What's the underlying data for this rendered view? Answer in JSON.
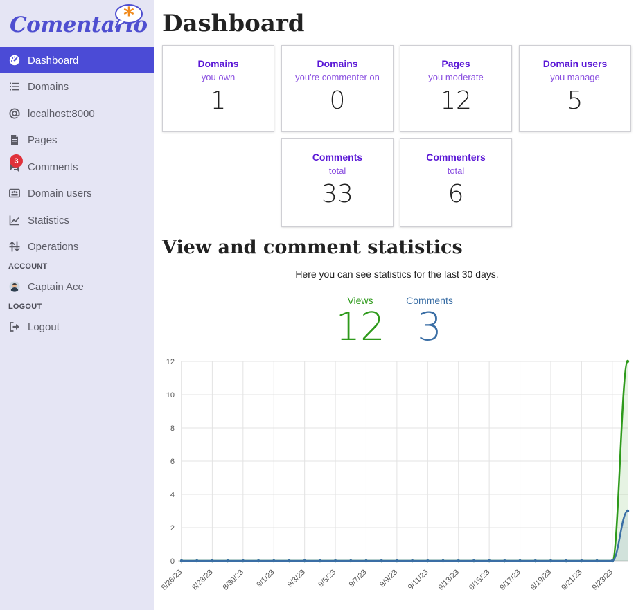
{
  "app": {
    "logo_text": "Comentario",
    "logo_mark": "*"
  },
  "sidebar": {
    "items": [
      {
        "label": "Dashboard",
        "icon": "dashboard-icon",
        "active": true
      },
      {
        "label": "Domains",
        "icon": "list-icon"
      },
      {
        "label": "localhost:8000",
        "icon": "at-icon"
      },
      {
        "label": "Pages",
        "icon": "file-icon"
      },
      {
        "label": "Comments",
        "icon": "comments-icon",
        "badge": "3"
      },
      {
        "label": "Domain users",
        "icon": "users-card-icon"
      },
      {
        "label": "Statistics",
        "icon": "chart-line-icon"
      },
      {
        "label": "Operations",
        "icon": "operations-icon"
      }
    ],
    "account_heading": "ACCOUNT",
    "account_user": "Captain Ace",
    "logout_heading": "LOGOUT",
    "logout_label": "Logout"
  },
  "main": {
    "title": "Dashboard",
    "cards": [
      {
        "title": "Domains",
        "subtitle": "you own",
        "value": "1"
      },
      {
        "title": "Domains",
        "subtitle": "you're commenter on",
        "value": "0"
      },
      {
        "title": "Pages",
        "subtitle": "you moderate",
        "value": "12"
      },
      {
        "title": "Domain users",
        "subtitle": "you manage",
        "value": "5"
      },
      {
        "title": "Comments",
        "subtitle": "total",
        "value": "33"
      },
      {
        "title": "Commenters",
        "subtitle": "total",
        "value": "6"
      }
    ],
    "stats_title": "View and comment statistics",
    "stats_desc": "Here you can see statistics for the last 30 days.",
    "metrics": [
      {
        "label": "Views",
        "value": "12",
        "color": "#2e9a1b"
      },
      {
        "label": "Comments",
        "value": "3",
        "color": "#3a6ea5"
      }
    ]
  },
  "colors": {
    "accent": "#4b4bd6",
    "card_title": "#5a17d6",
    "card_sub": "#8a4fe0",
    "badge": "#e0313b"
  },
  "chart_data": {
    "type": "line",
    "x": [
      "8/26/23",
      "8/27/23",
      "8/28/23",
      "8/29/23",
      "8/30/23",
      "8/31/23",
      "9/1/23",
      "9/2/23",
      "9/3/23",
      "9/4/23",
      "9/5/23",
      "9/6/23",
      "9/7/23",
      "9/8/23",
      "9/9/23",
      "9/10/23",
      "9/11/23",
      "9/12/23",
      "9/13/23",
      "9/14/23",
      "9/15/23",
      "9/16/23",
      "9/17/23",
      "9/18/23",
      "9/19/23",
      "9/20/23",
      "9/21/23",
      "9/22/23",
      "9/23/23",
      "9/24/23"
    ],
    "x_tick_labels": [
      "8/26/23",
      "8/28/23",
      "8/30/23",
      "9/1/23",
      "9/3/23",
      "9/5/23",
      "9/7/23",
      "9/9/23",
      "9/11/23",
      "9/13/23",
      "9/15/23",
      "9/17/23",
      "9/19/23",
      "9/21/23",
      "9/23/23"
    ],
    "series": [
      {
        "values": [
          0,
          0,
          0,
          0,
          0,
          0,
          0,
          0,
          0,
          0,
          0,
          0,
          0,
          0,
          0,
          0,
          0,
          0,
          0,
          0,
          0,
          0,
          0,
          0,
          0,
          0,
          0,
          0,
          0,
          12
        ],
        "color": "#2e9a1b"
      },
      {
        "values": [
          0,
          0,
          0,
          0,
          0,
          0,
          0,
          0,
          0,
          0,
          0,
          0,
          0,
          0,
          0,
          0,
          0,
          0,
          0,
          0,
          0,
          0,
          0,
          0,
          0,
          0,
          0,
          0,
          0,
          3
        ],
        "color": "#3a6ea5"
      }
    ],
    "ylim": [
      0,
      12
    ],
    "y_ticks": [
      0,
      2,
      4,
      6,
      8,
      10,
      12
    ],
    "grid": true
  }
}
